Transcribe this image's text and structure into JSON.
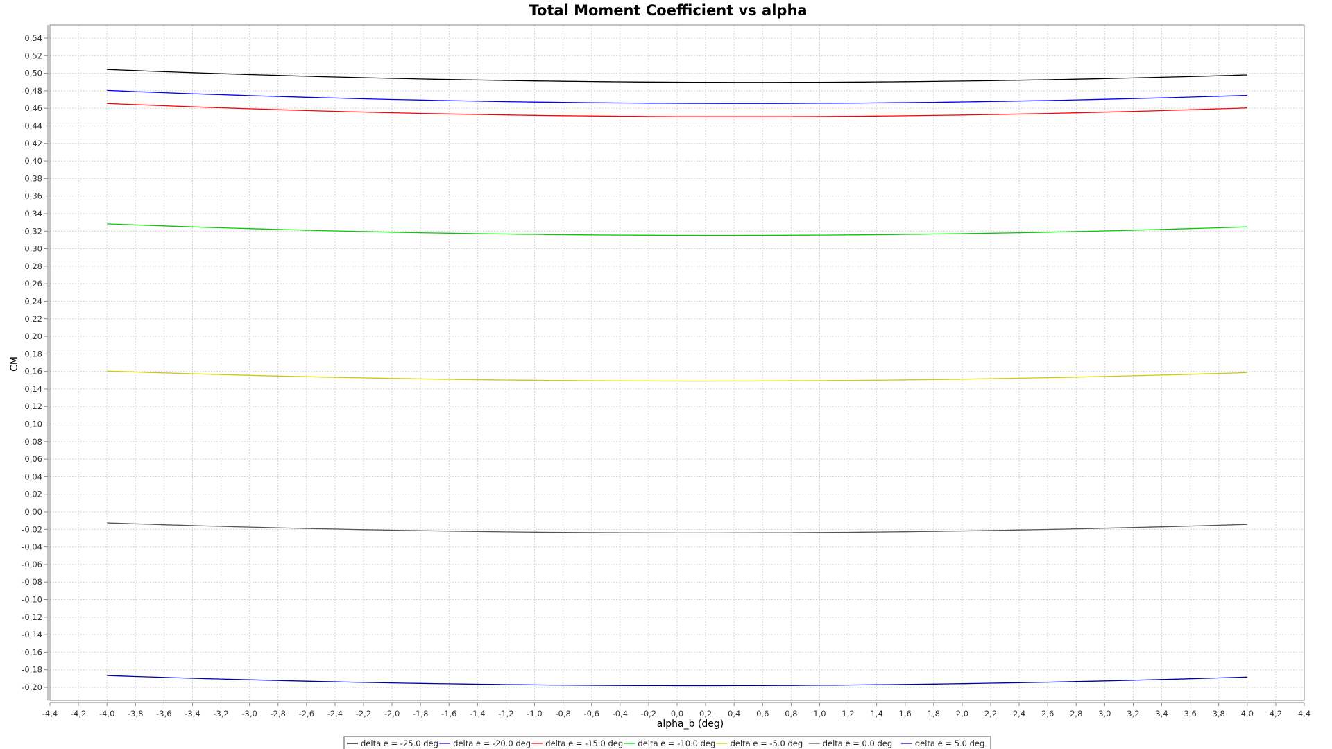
{
  "chart_data": {
    "type": "line",
    "title": "Total Moment Coefficient vs alpha",
    "xlabel": "alpha_b (deg)",
    "ylabel": "CM",
    "xlim": [
      -4.4,
      4.4
    ],
    "ylim": [
      -0.215,
      0.555
    ],
    "x_ticks": [
      "-4,4",
      "-4,2",
      "-4,0",
      "-3,8",
      "-3,6",
      "-3,4",
      "-3,2",
      "-3,0",
      "-2,8",
      "-2,6",
      "-2,4",
      "-2,2",
      "-2,0",
      "-1,8",
      "-1,6",
      "-1,4",
      "-1,2",
      "-1,0",
      "-0,8",
      "-0,6",
      "-0,4",
      "-0,2",
      "0,0",
      "0,2",
      "0,4",
      "0,6",
      "0,8",
      "1,0",
      "1,2",
      "1,4",
      "1,6",
      "1,8",
      "2,0",
      "2,2",
      "2,4",
      "2,6",
      "2,8",
      "3,0",
      "3,2",
      "3,4",
      "3,6",
      "3,8",
      "4,0",
      "4,2",
      "4,4"
    ],
    "y_ticks": [
      "-0,20",
      "-0,18",
      "-0,16",
      "-0,14",
      "-0,12",
      "-0,10",
      "-0,08",
      "-0,06",
      "-0,04",
      "-0,02",
      "0,00",
      "0,02",
      "0,04",
      "0,06",
      "0,08",
      "0,10",
      "0,12",
      "0,14",
      "0,16",
      "0,18",
      "0,20",
      "0,22",
      "0,24",
      "0,26",
      "0,28",
      "0,30",
      "0,32",
      "0,34",
      "0,36",
      "0,38",
      "0,40",
      "0,42",
      "0,44",
      "0,46",
      "0,48",
      "0,50",
      "0,52",
      "0,54"
    ],
    "grid": true,
    "legend_position": "bottom",
    "x": [
      -4.0,
      -3.0,
      -2.0,
      -1.0,
      0.0,
      0.5,
      1.0,
      2.0,
      3.0,
      4.0
    ],
    "series": [
      {
        "name": "delta e =  -25.0 deg",
        "color": "#000000",
        "values": [
          0.504,
          0.499,
          0.494,
          0.491,
          0.4898,
          0.4895,
          0.4898,
          0.491,
          0.494,
          0.498
        ]
      },
      {
        "name": "delta e =  -20.0 deg",
        "color": "#0000ff",
        "values": [
          0.48,
          0.475,
          0.47,
          0.467,
          0.4658,
          0.4655,
          0.4658,
          0.467,
          0.47,
          0.475
        ]
      },
      {
        "name": "delta e =  -15.0 deg",
        "color": "#ff0000",
        "values": [
          0.465,
          0.46,
          0.455,
          0.452,
          0.4508,
          0.4505,
          0.4508,
          0.452,
          0.455,
          0.461
        ]
      },
      {
        "name": "delta e =  -10.0 deg",
        "color": "#00cc00",
        "values": [
          0.328,
          0.323,
          0.319,
          0.316,
          0.3153,
          0.315,
          0.3153,
          0.317,
          0.32,
          0.325
        ]
      },
      {
        "name": "delta e =  -5.0 deg",
        "color": "#cccc00",
        "values": [
          0.16,
          0.156,
          0.152,
          0.15,
          0.1493,
          0.149,
          0.1493,
          0.151,
          0.154,
          0.159
        ]
      },
      {
        "name": "delta e =  0.0 deg",
        "color": "#555555",
        "values": [
          -0.013,
          -0.017,
          -0.021,
          -0.023,
          -0.0237,
          -0.024,
          -0.0237,
          -0.022,
          -0.019,
          -0.014
        ]
      },
      {
        "name": "delta e =  5.0 deg",
        "color": "#0000aa",
        "values": [
          -0.187,
          -0.191,
          -0.195,
          -0.197,
          -0.1977,
          -0.198,
          -0.1977,
          -0.196,
          -0.193,
          -0.188
        ]
      }
    ]
  }
}
